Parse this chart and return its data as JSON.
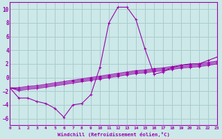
{
  "xlabel": "Windchill (Refroidissement éolien,°C)",
  "xlim": [
    0,
    23
  ],
  "ylim": [
    -7,
    11
  ],
  "yticks": [
    -6,
    -4,
    -2,
    0,
    2,
    4,
    6,
    8,
    10
  ],
  "xticks": [
    0,
    1,
    2,
    3,
    4,
    5,
    6,
    7,
    8,
    9,
    10,
    11,
    12,
    13,
    14,
    15,
    16,
    17,
    18,
    19,
    20,
    21,
    22,
    23
  ],
  "background_color": "#cce8e8",
  "grid_color": "#aacccc",
  "line_color": "#9900aa",
  "series_main": [
    -1.5,
    -3.0,
    -3.0,
    -3.5,
    -3.8,
    -4.5,
    -5.8,
    -4.0,
    -3.8,
    -2.5,
    1.5,
    8.0,
    10.3,
    10.3,
    8.5,
    4.2,
    0.5,
    0.8,
    1.5,
    1.8,
    2.0,
    2.0,
    2.5,
    3.0
  ],
  "series_linear": [
    [
      -1.5,
      -1.5,
      -1.3,
      -1.2,
      -1.0,
      -0.8,
      -0.6,
      -0.4,
      -0.2,
      0.0,
      0.2,
      0.4,
      0.6,
      0.8,
      1.0,
      1.1,
      1.3,
      1.4,
      1.6,
      1.8,
      1.9,
      2.0,
      2.2,
      2.4
    ],
    [
      -1.5,
      -1.7,
      -1.5,
      -1.4,
      -1.2,
      -1.0,
      -0.8,
      -0.6,
      -0.4,
      -0.2,
      0.0,
      0.2,
      0.4,
      0.6,
      0.8,
      0.9,
      1.1,
      1.2,
      1.4,
      1.6,
      1.7,
      1.8,
      2.0,
      2.2
    ],
    [
      -1.5,
      -1.9,
      -1.7,
      -1.6,
      -1.4,
      -1.2,
      -1.0,
      -0.8,
      -0.6,
      -0.4,
      -0.2,
      0.0,
      0.2,
      0.4,
      0.6,
      0.7,
      0.9,
      1.0,
      1.2,
      1.4,
      1.5,
      1.6,
      1.8,
      2.0
    ]
  ]
}
